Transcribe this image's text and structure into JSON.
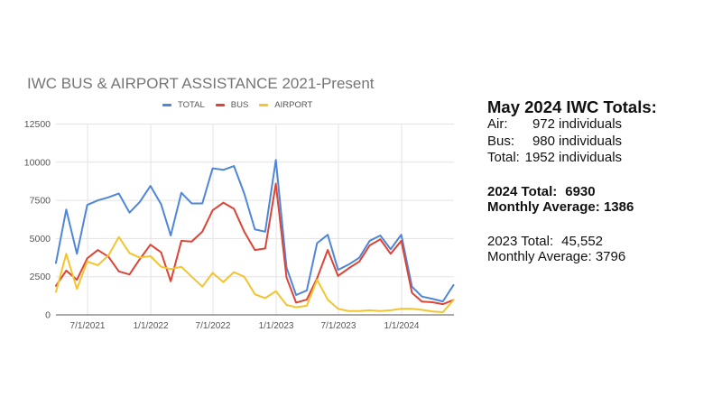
{
  "chart_data": {
    "type": "line",
    "title": "IWC BUS & AIRPORT ASSISTANCE 2021-Present",
    "xlabel": "",
    "ylabel": "",
    "ylim": [
      0,
      12500
    ],
    "yticks": [
      0,
      2500,
      5000,
      7500,
      10000,
      12500
    ],
    "xticks": [
      "7/1/2021",
      "1/1/2022",
      "7/1/2022",
      "1/1/2023",
      "7/1/2023",
      "1/1/2024"
    ],
    "grid": true,
    "legend_position": "top",
    "x": [
      "Mar 2021",
      "Apr 2021",
      "May 2021",
      "Jun 2021",
      "Jul 2021",
      "Aug 2021",
      "Sep 2021",
      "Oct 2021",
      "Nov 2021",
      "Dec 2021",
      "Jan 2022",
      "Feb 2022",
      "Mar 2022",
      "Apr 2022",
      "May 2022",
      "Jun 2022",
      "Jul 2022",
      "Aug 2022",
      "Sep 2022",
      "Oct 2022",
      "Nov 2022",
      "Dec 2022",
      "Jan 2023",
      "Feb 2023",
      "Mar 2023",
      "Apr 2023",
      "May 2023",
      "Jun 2023",
      "Jul 2023",
      "Aug 2023",
      "Sep 2023",
      "Oct 2023",
      "Nov 2023",
      "Dec 2023",
      "Jan 2024",
      "Feb 2024",
      "Mar 2024",
      "Apr 2024",
      "May 2024"
    ],
    "series": [
      {
        "name": "TOTAL",
        "color": "#4f86d6",
        "values": [
          3400,
          6900,
          4000,
          7200,
          7500,
          7700,
          7950,
          6700,
          7400,
          8450,
          7250,
          5200,
          8000,
          7300,
          7300,
          9600,
          9500,
          9750,
          7950,
          5600,
          5450,
          10150,
          3100,
          1300,
          1600,
          4700,
          5250,
          2950,
          3300,
          3750,
          4850,
          5200,
          4300,
          5252,
          1850,
          1200,
          1050,
          878,
          1952
        ]
      },
      {
        "name": "BUS",
        "color": "#db4437",
        "values": [
          1900,
          2900,
          2300,
          3700,
          4250,
          3800,
          2850,
          2650,
          3650,
          4600,
          4100,
          2200,
          4850,
          4800,
          5450,
          6850,
          7350,
          6950,
          5450,
          4250,
          4350,
          8600,
          2450,
          800,
          1000,
          2400,
          4250,
          2550,
          3050,
          3500,
          4550,
          4950,
          4000,
          4850,
          1450,
          870,
          830,
          700,
          980
        ]
      },
      {
        "name": "AIRPORT",
        "color": "#f4c430",
        "values": [
          1500,
          4000,
          1700,
          3500,
          3250,
          3900,
          5100,
          4050,
          3750,
          3850,
          3150,
          3000,
          3150,
          2500,
          1850,
          2750,
          2150,
          2800,
          2500,
          1350,
          1100,
          1550,
          650,
          500,
          600,
          2300,
          1000,
          400,
          250,
          250,
          300,
          250,
          300,
          402,
          400,
          330,
          220,
          178,
          972
        ]
      }
    ]
  },
  "summary": {
    "heading": "May 2024 IWC Totals:",
    "month_rows": [
      {
        "label": "Air:",
        "value": "972",
        "unit": "individuals"
      },
      {
        "label": "Bus:",
        "value": "980",
        "unit": "individuals"
      },
      {
        "label": "Total:",
        "value": "1952",
        "unit": "individuals"
      }
    ],
    "ytd_2024": {
      "total_label": "2024 Total:",
      "total_value": "6930",
      "avg_label": "Monthly Average:",
      "avg_value": "1386"
    },
    "year_2023": {
      "total_label": "2023 Total:",
      "total_value": "45,552",
      "avg_label": "Monthly Average:",
      "avg_value": "3796"
    }
  }
}
